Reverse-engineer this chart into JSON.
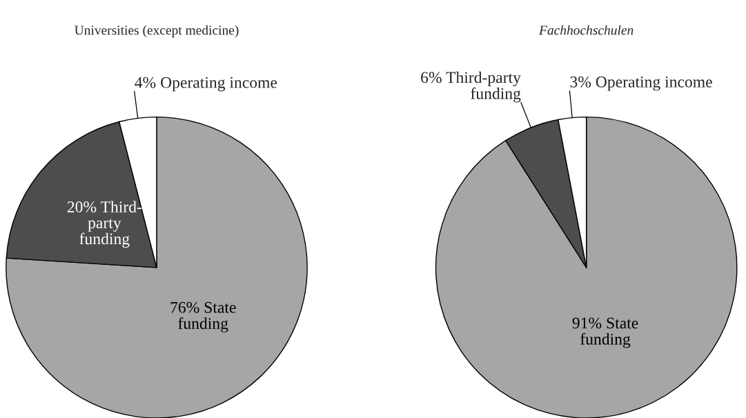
{
  "chart_data": [
    {
      "type": "pie",
      "title": "Universities (except medicine)",
      "categories": [
        "State\nfunding",
        "Third-\nparty\nfunding",
        "Operating income"
      ],
      "values": [
        76,
        20,
        4
      ],
      "colors": [
        "#a6a6a6",
        "#4d4d4d",
        "#ffffff"
      ],
      "value_labels": [
        "76%",
        "20%",
        "4%"
      ],
      "legend": false
    },
    {
      "type": "pie",
      "title": "Fachhochschulen",
      "categories": [
        "State\nfunding",
        "Third-party\nfunding",
        "Operating income"
      ],
      "values": [
        91,
        6,
        3
      ],
      "colors": [
        "#a6a6a6",
        "#4d4d4d",
        "#ffffff"
      ],
      "value_labels": [
        "91%",
        "6%",
        "3%"
      ],
      "legend": false
    }
  ]
}
